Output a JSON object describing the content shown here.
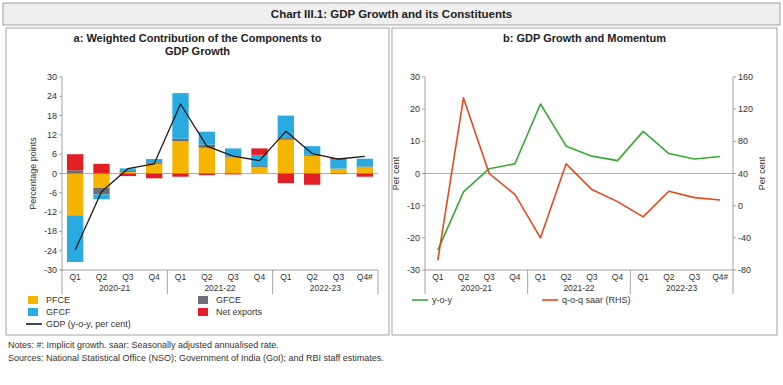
{
  "header": {
    "title": "Chart III.1: GDP Growth and its Constituents"
  },
  "chart_data": [
    {
      "type": "bar",
      "title": "a: Weighted Contribution of the Components to GDP Growth",
      "ylabel": "Percentage points",
      "stacked": true,
      "categories": [
        "Q1",
        "Q2",
        "Q3",
        "Q4",
        "Q1",
        "Q2",
        "Q3",
        "Q4",
        "Q1",
        "Q2",
        "Q3",
        "Q4#"
      ],
      "groups": [
        "2020-21",
        "2021-22",
        "2022-23"
      ],
      "ylim": [
        -30,
        30
      ],
      "yticks": [
        -30,
        -24,
        -18,
        -12,
        -6,
        0,
        6,
        12,
        18,
        24,
        30
      ],
      "series": [
        {
          "name": "PFCE",
          "color": "#f4b400",
          "values": [
            -13,
            -4.5,
            0.5,
            3,
            10,
            8,
            5,
            2,
            10.5,
            5.5,
            1.5,
            2
          ]
        },
        {
          "name": "GFCE",
          "color": "#6d6e71",
          "values": [
            1,
            -2,
            0.3,
            0.5,
            0.8,
            1,
            0.3,
            0.3,
            0.5,
            0.3,
            -0.2,
            0.2
          ]
        },
        {
          "name": "GFCF",
          "color": "#29abe2",
          "values": [
            -14.5,
            -1.5,
            0.8,
            1,
            14.2,
            4,
            2.5,
            3.5,
            7,
            2.7,
            2.8,
            2.4
          ]
        },
        {
          "name": "Net exports",
          "color": "#e31e24",
          "values": [
            5,
            3,
            -0.8,
            -1.5,
            -1,
            -0.5,
            -0.3,
            2,
            -3,
            -3.5,
            0.5,
            -1
          ]
        },
        {
          "name": "GDP (y-o-y, per cent)",
          "type": "line",
          "color": "#1a1a1a",
          "values": [
            -23.8,
            -5.7,
            1.5,
            3,
            21.6,
            8.5,
            5.4,
            4,
            13.1,
            6.2,
            4.5,
            5.3
          ]
        }
      ]
    },
    {
      "type": "line",
      "title": "b: GDP Growth and Momentum",
      "ylabel": "Per cent",
      "y2label": "Per cent",
      "categories": [
        "Q1",
        "Q2",
        "Q3",
        "Q4",
        "Q1",
        "Q2",
        "Q3",
        "Q4",
        "Q1",
        "Q2",
        "Q3",
        "Q4#"
      ],
      "groups": [
        "2020-21",
        "2021-22",
        "2022-23"
      ],
      "ylim": [
        -30,
        30
      ],
      "yticks": [
        -30,
        -20,
        -10,
        0,
        10,
        20,
        30
      ],
      "y2lim": [
        -80,
        160
      ],
      "y2ticks": [
        -80,
        -40,
        0,
        40,
        80,
        120,
        160
      ],
      "series": [
        {
          "name": "y-o-y",
          "color": "#3aaa35",
          "values": [
            -23.8,
            -5.7,
            1.5,
            3,
            21.6,
            8.5,
            5.4,
            4,
            13.1,
            6.2,
            4.5,
            5.3
          ]
        },
        {
          "name": "q-o-q saar (RHS)",
          "color": "#e8481c",
          "axis": "y2",
          "values": [
            -68,
            134,
            40,
            14,
            -40,
            52,
            20,
            5,
            -14,
            18,
            10,
            7
          ]
        }
      ]
    }
  ],
  "notes": "Notes: #: Implicit growth.  saar: Seasonally adjusted annualised rate.",
  "sources": "Sources: National Statistical Office (NSO); Government of India (GoI); and RBI staff estimates."
}
